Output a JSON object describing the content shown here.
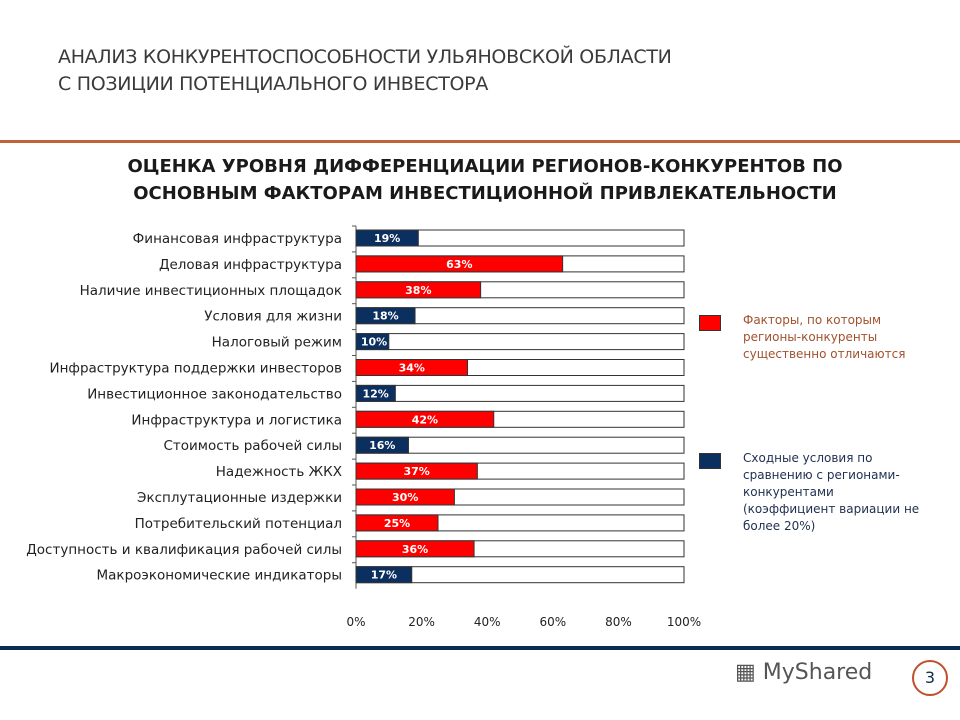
{
  "header": {
    "line1": "АНАЛИЗ КОНКУРЕНТОСПОСОБНОСТИ УЛЬЯНОВСКОЙ ОБЛАСТИ",
    "line2": "С ПОЗИЦИИ ПОТЕНЦИАЛЬНОГО ИНВЕСТОРА"
  },
  "chart_data": {
    "type": "bar",
    "orientation": "horizontal",
    "title": "ОЦЕНКА УРОВНЯ ДИФФЕРЕНЦИАЦИИ РЕГИОНОВ-КОНКУРЕНТОВ ПО ОСНОВНЫМ ФАКТОРАМ ИНВЕСТИЦИОННОЙ ПРИВЛЕКАТЕЛЬНОСТИ",
    "title_lines": [
      "ОЦЕНКА УРОВНЯ ДИФФЕРЕНЦИАЦИИ РЕГИОНОВ-КОНКУРЕНТОВ ПО",
      "ОСНОВНЫМ ФАКТОРАМ ИНВЕСТИЦИОННОЙ ПРИВЛЕКАТЕЛЬНОСТИ"
    ],
    "categories": [
      "Финансовая инфраструктура",
      "Деловая инфраструктура",
      "Наличие инвестиционных площадок",
      "Условия для жизни",
      "Налоговый режим",
      "Инфраструктура поддержки инвесторов",
      "Инвестиционное законодательство",
      "Инфраструктура и логистика",
      "Стоимость рабочей силы",
      "Надежность ЖКХ",
      "Эксплутационные издержки",
      "Потребительский потенциал",
      "Доступность и квалификация рабочей силы",
      "Макроэкономические индикаторы"
    ],
    "values": [
      19,
      63,
      38,
      18,
      10,
      34,
      12,
      42,
      16,
      37,
      30,
      25,
      36,
      17
    ],
    "groups": [
      "similar",
      "differ",
      "differ",
      "similar",
      "similar",
      "differ",
      "similar",
      "differ",
      "similar",
      "differ",
      "differ",
      "differ",
      "differ",
      "similar"
    ],
    "xlim": [
      0,
      100
    ],
    "xticks": [
      "0%",
      "20%",
      "40%",
      "60%",
      "80%",
      "100%"
    ],
    "legend": [
      {
        "key": "differ",
        "label": "Факторы, по которым регионы-конкуренты существенно отличаются",
        "color": "#ff0000",
        "text_color": "#a0522d"
      },
      {
        "key": "similar",
        "label": "Сходные условия по сравнению с регионами-конкурентами (коэффициент вариации не более 20%)",
        "color": "#0b2f5e",
        "text_color": "#1f2f4f"
      }
    ],
    "legend_position": "right"
  },
  "footer": {
    "brand": "MyShared",
    "page": "3"
  },
  "colors": {
    "accent_line": "#c0623a",
    "bottom_line": "#0b2c4f"
  }
}
